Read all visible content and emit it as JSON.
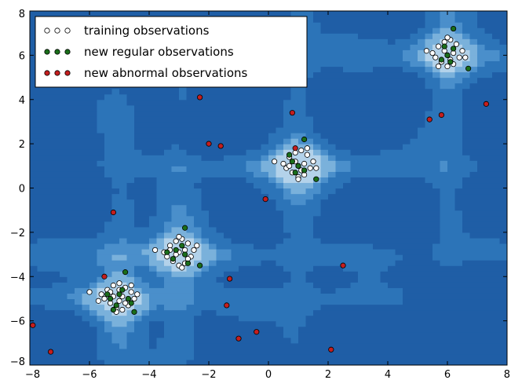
{
  "chart_data": {
    "type": "scatter",
    "title": "",
    "xlabel": "",
    "ylabel": "",
    "xlim": [
      -8,
      8
    ],
    "ylim": [
      -8,
      8
    ],
    "x_ticks": [
      -8,
      -6,
      -4,
      -2,
      0,
      2,
      4,
      6,
      8
    ],
    "y_ticks": [
      -8,
      -6,
      -4,
      -2,
      0,
      2,
      4,
      6,
      8
    ],
    "x_tick_labels": [
      "−8",
      "−6",
      "−4",
      "−2",
      "0",
      "2",
      "4",
      "6",
      "8"
    ],
    "y_tick_labels": [
      "−8",
      "−6",
      "−4",
      "−2",
      "0",
      "2",
      "4",
      "6",
      "8"
    ],
    "grid": false,
    "legend": {
      "placement": "top-left",
      "entries": [
        {
          "label": "training observations",
          "color": "#ffffff"
        },
        {
          "label": "new regular observations",
          "color": "#1a6e1a"
        },
        {
          "label": "new abnormal observations",
          "color": "#c41e1e"
        }
      ]
    },
    "background": {
      "type": "decision-function contour",
      "colors": [
        "#1f5ea6",
        "#2c74b8",
        "#4a8fcb",
        "#7ab1db",
        "#b3d2ea"
      ]
    },
    "clusters": [
      {
        "cx": -5,
        "cy": -5
      },
      {
        "cx": -3,
        "cy": -3
      },
      {
        "cx": 1,
        "cy": 1
      },
      {
        "cx": 6,
        "cy": 6
      }
    ],
    "series": [
      {
        "name": "training observations",
        "color": "#ffffff",
        "points": [
          [
            -5.6,
            -4.8
          ],
          [
            -5.4,
            -4.6
          ],
          [
            -5.2,
            -4.4
          ],
          [
            -5.0,
            -4.3
          ],
          [
            -4.8,
            -4.5
          ],
          [
            -4.6,
            -4.7
          ],
          [
            -4.5,
            -5.0
          ],
          [
            -4.7,
            -5.3
          ],
          [
            -4.9,
            -5.5
          ],
          [
            -5.1,
            -5.4
          ],
          [
            -5.3,
            -5.2
          ],
          [
            -5.5,
            -5.0
          ],
          [
            -5.2,
            -4.9
          ],
          [
            -4.9,
            -4.9
          ],
          [
            -5.0,
            -5.1
          ],
          [
            -5.7,
            -5.1
          ],
          [
            -4.6,
            -4.4
          ],
          [
            -5.0,
            -4.6
          ],
          [
            -4.8,
            -5.2
          ],
          [
            -5.3,
            -4.7
          ],
          [
            -6.0,
            -4.7
          ],
          [
            -4.4,
            -4.8
          ],
          [
            -5.1,
            -5.6
          ],
          [
            -3.5,
            -2.9
          ],
          [
            -3.3,
            -2.6
          ],
          [
            -3.1,
            -2.4
          ],
          [
            -2.9,
            -2.3
          ],
          [
            -2.7,
            -2.5
          ],
          [
            -2.5,
            -2.8
          ],
          [
            -2.6,
            -3.1
          ],
          [
            -2.8,
            -3.4
          ],
          [
            -3.0,
            -3.5
          ],
          [
            -3.2,
            -3.3
          ],
          [
            -3.4,
            -3.1
          ],
          [
            -3.0,
            -2.9
          ],
          [
            -2.8,
            -2.8
          ],
          [
            -3.1,
            -3.0
          ],
          [
            -3.3,
            -2.8
          ],
          [
            -2.7,
            -3.2
          ],
          [
            -3.8,
            -2.8
          ],
          [
            -2.4,
            -2.6
          ],
          [
            -3.0,
            -2.2
          ],
          [
            -2.9,
            -3.6
          ],
          [
            0.5,
            1.1
          ],
          [
            0.7,
            1.4
          ],
          [
            0.9,
            1.6
          ],
          [
            1.1,
            1.7
          ],
          [
            1.3,
            1.5
          ],
          [
            1.5,
            1.2
          ],
          [
            1.4,
            0.9
          ],
          [
            1.2,
            0.6
          ],
          [
            1.0,
            0.5
          ],
          [
            0.8,
            0.7
          ],
          [
            0.6,
            0.9
          ],
          [
            1.0,
            1.0
          ],
          [
            1.2,
            1.1
          ],
          [
            0.9,
            1.2
          ],
          [
            1.1,
            0.8
          ],
          [
            0.7,
            1.0
          ],
          [
            0.2,
            1.2
          ],
          [
            1.6,
            0.9
          ],
          [
            1.0,
            0.4
          ],
          [
            1.3,
            1.8
          ],
          [
            5.5,
            6.1
          ],
          [
            5.7,
            6.4
          ],
          [
            5.9,
            6.6
          ],
          [
            6.1,
            6.7
          ],
          [
            6.3,
            6.5
          ],
          [
            6.5,
            6.2
          ],
          [
            6.4,
            5.9
          ],
          [
            6.2,
            5.6
          ],
          [
            6.0,
            5.5
          ],
          [
            5.8,
            5.7
          ],
          [
            5.6,
            5.9
          ],
          [
            6.0,
            6.0
          ],
          [
            6.2,
            6.1
          ],
          [
            5.9,
            6.2
          ],
          [
            6.1,
            5.8
          ],
          [
            5.3,
            6.2
          ],
          [
            6.6,
            5.9
          ],
          [
            6.0,
            6.8
          ],
          [
            5.7,
            5.5
          ]
        ]
      },
      {
        "name": "new regular observations",
        "color": "#1a6e1a",
        "points": [
          [
            -5.3,
            -5.0
          ],
          [
            -5.0,
            -4.8
          ],
          [
            -4.7,
            -5.0
          ],
          [
            -5.1,
            -5.3
          ],
          [
            -4.9,
            -4.6
          ],
          [
            -5.4,
            -4.8
          ],
          [
            -4.8,
            -3.8
          ],
          [
            -4.5,
            -5.6
          ],
          [
            -5.2,
            -5.5
          ],
          [
            -4.6,
            -5.2
          ],
          [
            -3.1,
            -2.8
          ],
          [
            -2.8,
            -3.0
          ],
          [
            -3.2,
            -3.2
          ],
          [
            -2.9,
            -2.6
          ],
          [
            -2.7,
            -3.4
          ],
          [
            -2.8,
            -1.8
          ],
          [
            -2.3,
            -3.5
          ],
          [
            -3.4,
            -2.9
          ],
          [
            1.0,
            1.0
          ],
          [
            0.8,
            1.2
          ],
          [
            1.2,
            0.8
          ],
          [
            0.9,
            0.7
          ],
          [
            1.2,
            2.2
          ],
          [
            1.6,
            0.4
          ],
          [
            0.7,
            1.5
          ],
          [
            6.0,
            6.0
          ],
          [
            6.2,
            6.3
          ],
          [
            5.8,
            5.8
          ],
          [
            6.1,
            5.7
          ],
          [
            6.2,
            7.2
          ],
          [
            6.7,
            5.4
          ],
          [
            5.9,
            6.4
          ]
        ]
      },
      {
        "name": "new abnormal observations",
        "color": "#c41e1e",
        "points": [
          [
            -2.3,
            4.1
          ],
          [
            -2.0,
            2.0
          ],
          [
            -1.6,
            1.9
          ],
          [
            0.8,
            3.4
          ],
          [
            0.9,
            1.8
          ],
          [
            -0.1,
            -0.5
          ],
          [
            -5.2,
            -1.1
          ],
          [
            -5.5,
            -4.0
          ],
          [
            -1.3,
            -4.1
          ],
          [
            -1.4,
            -5.3
          ],
          [
            -0.4,
            -6.5
          ],
          [
            -1.0,
            -6.8
          ],
          [
            2.5,
            -3.5
          ],
          [
            2.1,
            -7.3
          ],
          [
            -7.9,
            -6.2
          ],
          [
            -7.3,
            -7.4
          ],
          [
            5.4,
            3.1
          ],
          [
            5.8,
            3.3
          ],
          [
            7.3,
            3.8
          ]
        ]
      }
    ]
  }
}
